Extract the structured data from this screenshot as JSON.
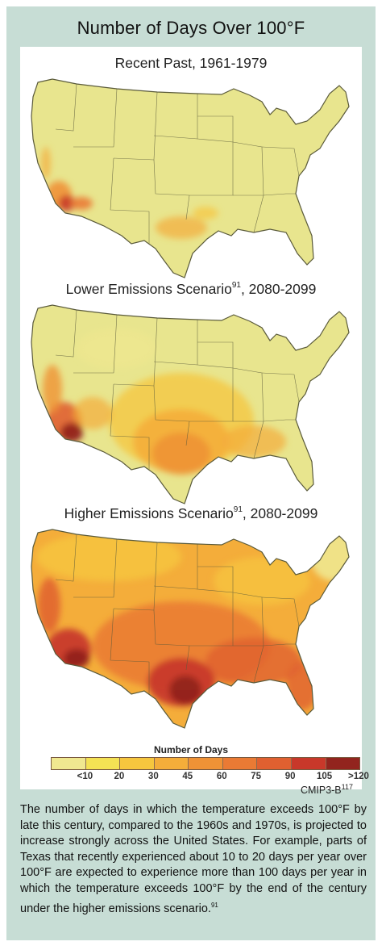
{
  "title": "Number of Days Over 100°F",
  "maps": [
    {
      "title": "Recent Past, 1961-1979",
      "sup": ""
    },
    {
      "title": "Lower Emissions Scenario",
      "sup": "91",
      "suffix": ", 2080-2099"
    },
    {
      "title": "Higher Emissions Scenario",
      "sup": "91",
      "suffix": ", 2080-2099"
    }
  ],
  "legend": {
    "title": "Number of Days",
    "labels": [
      "<10",
      "20",
      "30",
      "45",
      "60",
      "75",
      "90",
      "105",
      ">120"
    ],
    "colors": [
      "#f0e890",
      "#f4e254",
      "#f6c63e",
      "#f4ad3a",
      "#ef9236",
      "#ea7a34",
      "#e06030",
      "#c8382a",
      "#92241e"
    ]
  },
  "source": {
    "text": "CMIP3-B",
    "sup": "117"
  },
  "caption": {
    "text": "The number of days in which the temperature exceeds 100°F by late this century, compared to the 1960s and 1970s, is projected to increase strongly across the United States. For example, parts of Texas that recently experienced about 10 to 20 days per year over 100°F are expected to experience more than 100 days per year in which the temperature exceeds 100°F by the end of the century under the higher emissions scenario.",
    "sup": "91"
  },
  "colors": {
    "panel": "#c7ddd5",
    "base_land": "#e8e58e",
    "state_lines": "#5a5a3a"
  }
}
